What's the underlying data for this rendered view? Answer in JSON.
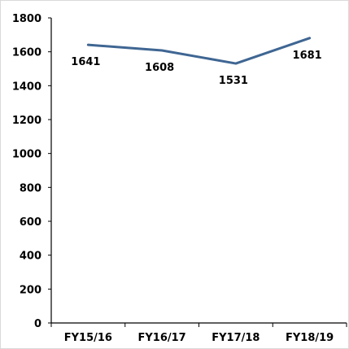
{
  "chart_data": {
    "type": "line",
    "title": "",
    "xlabel": "",
    "ylabel": "",
    "categories": [
      "FY15/16",
      "FY16/17",
      "FY17/18",
      "FY18/19"
    ],
    "series": [
      {
        "values": [
          1641,
          1608,
          1531,
          1681
        ],
        "color": "#3f6693"
      }
    ],
    "ylim": [
      0,
      1800
    ],
    "yticks": [
      0,
      200,
      400,
      600,
      800,
      1000,
      1200,
      1400,
      1600,
      1800
    ],
    "grid": false,
    "legend": "none",
    "data_labels": true,
    "colors": {
      "line": "#3f6693",
      "axis": "#000000",
      "text": "#000000",
      "border": "#d9d9d9",
      "background": "#ffffff"
    }
  }
}
